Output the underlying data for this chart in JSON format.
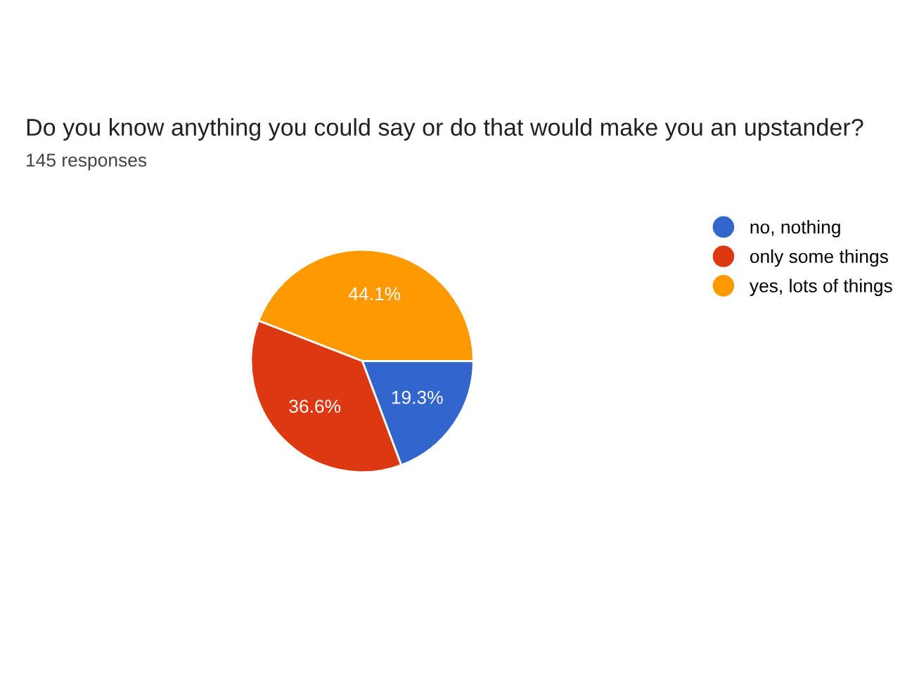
{
  "chart_data": {
    "type": "pie",
    "title": "Do you know anything you could say or do that would make you an upstander?",
    "subtitle": "145 responses",
    "categories": [
      "no, nothing",
      "only some things",
      "yes, lots of things"
    ],
    "values": [
      19.3,
      36.6,
      44.1
    ],
    "value_labels": [
      "19.3%",
      "36.6%",
      "44.1%"
    ],
    "colors": [
      "#3366cc",
      "#dc3912",
      "#ff9900"
    ],
    "legend": "right"
  }
}
